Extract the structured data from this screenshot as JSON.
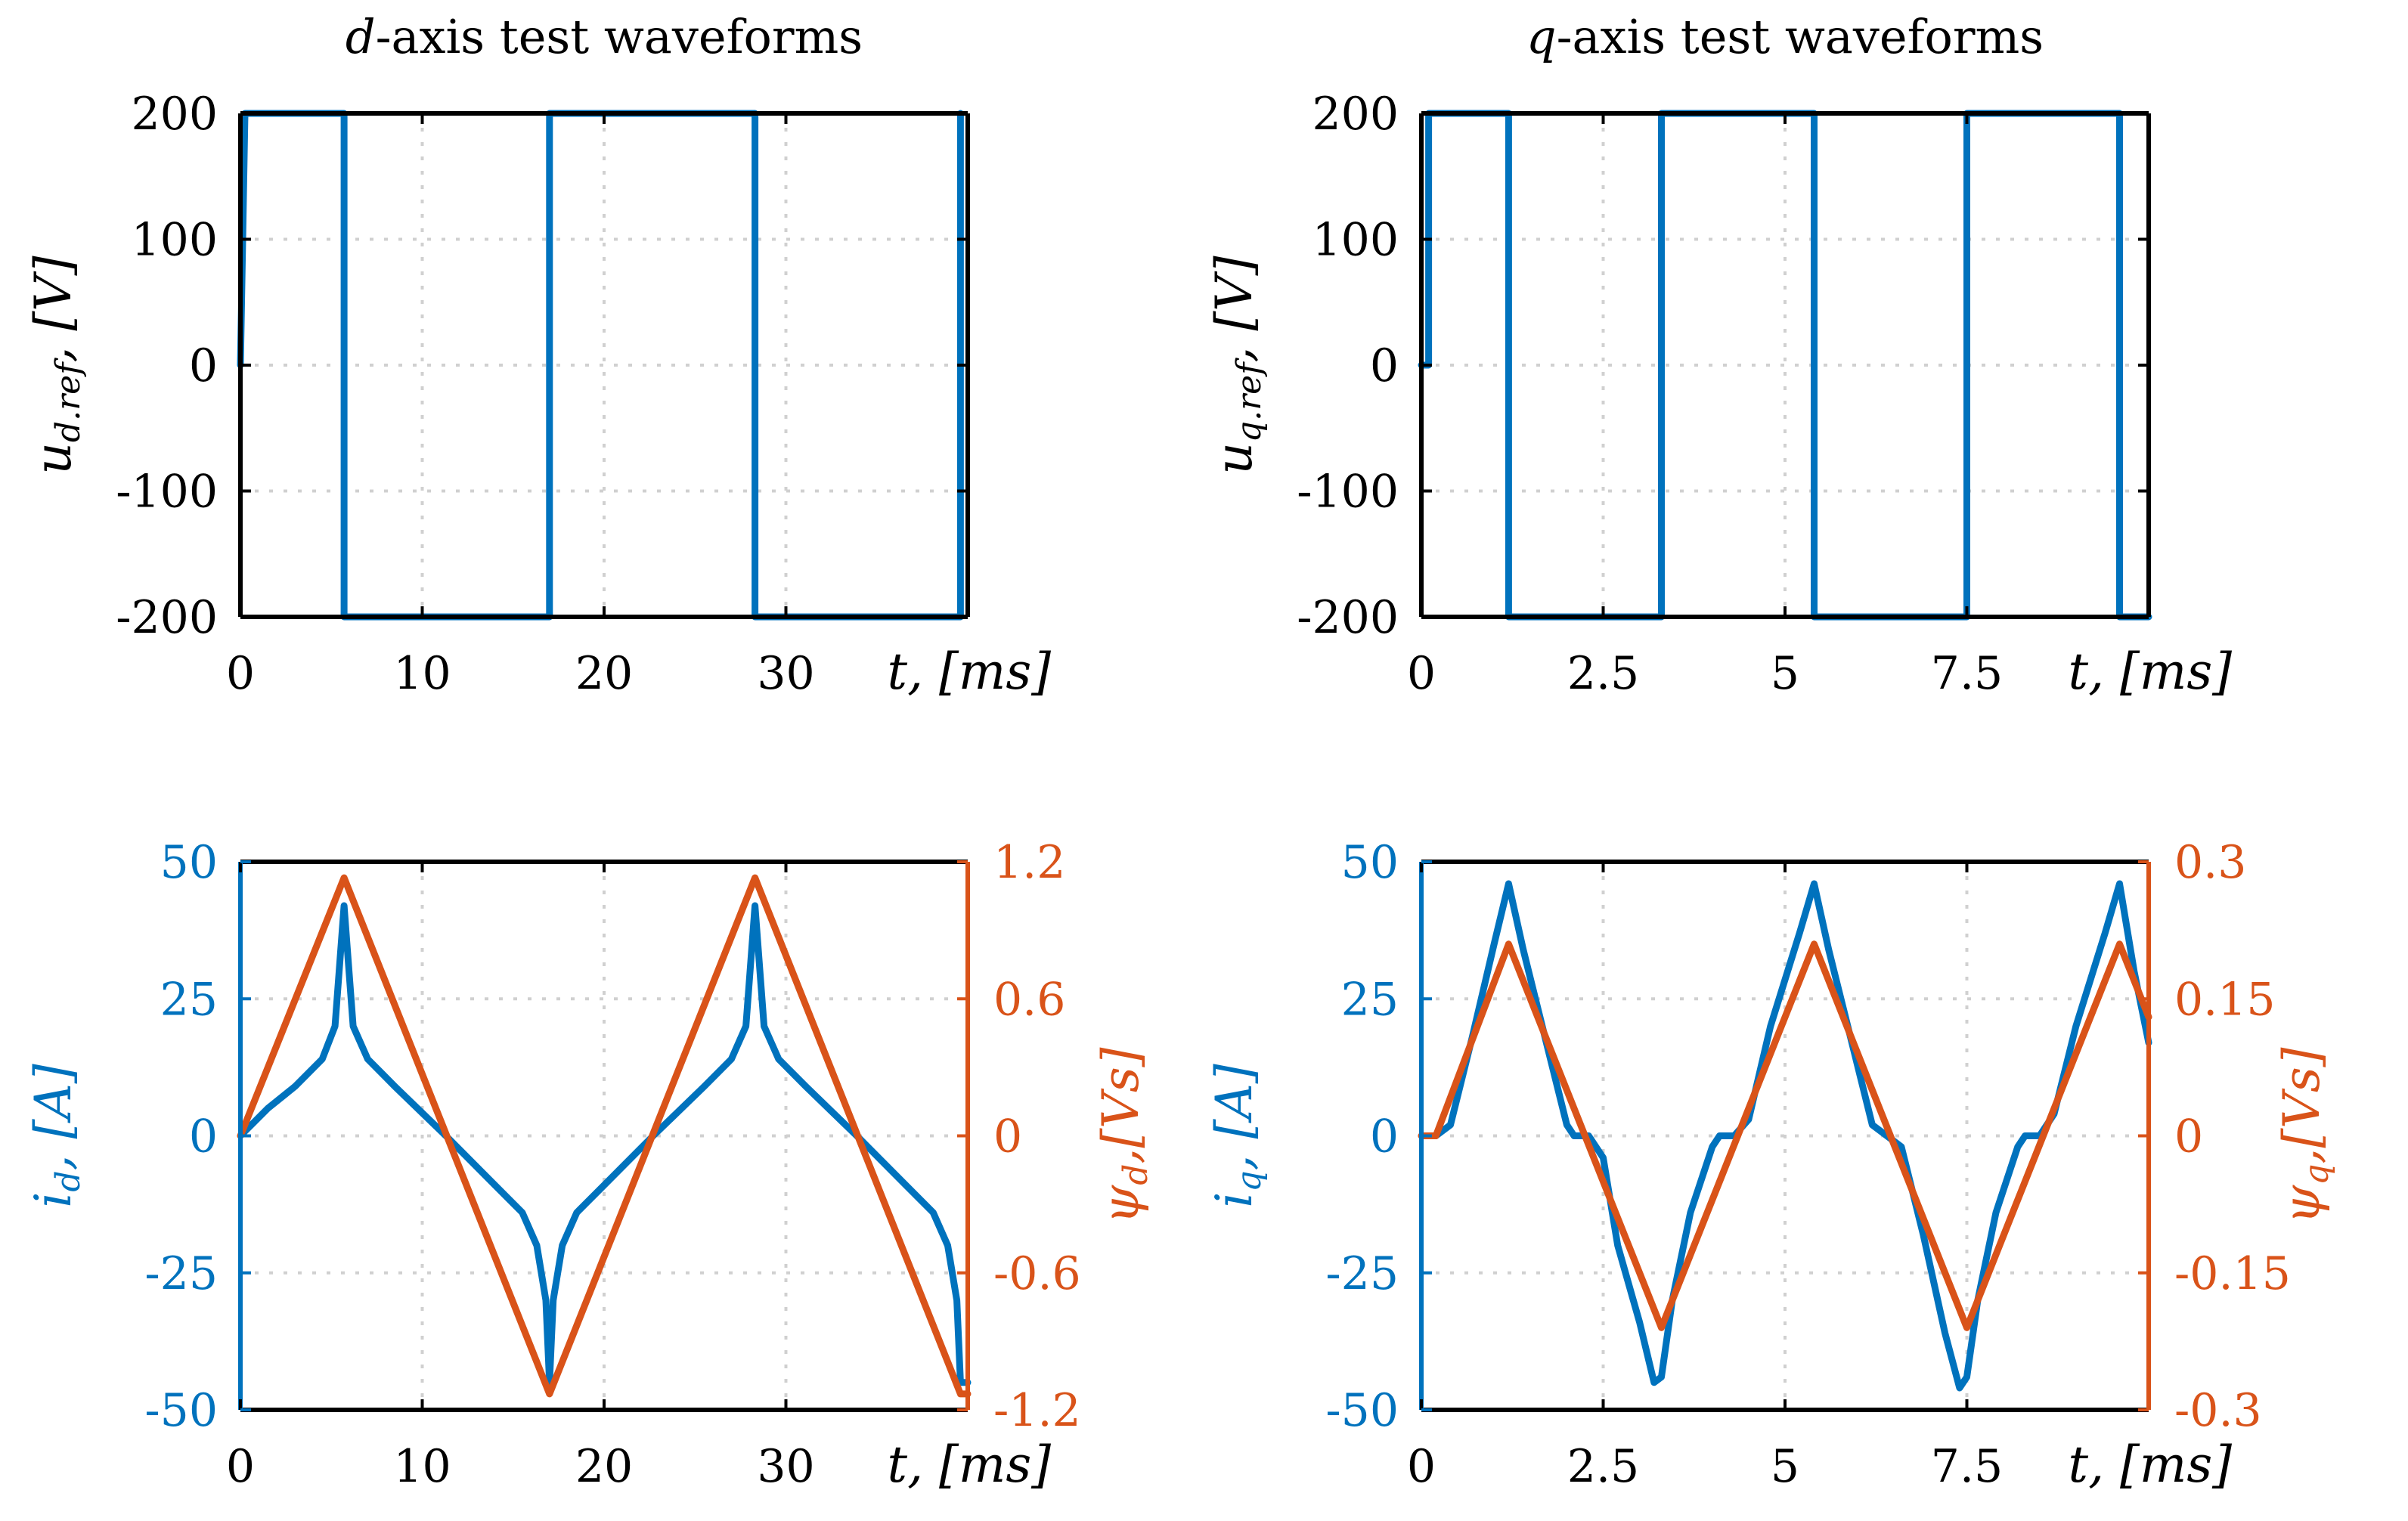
{
  "colors": {
    "blue": "#0072BD",
    "orange": "#D95319",
    "black": "#000000",
    "grid": "#d0d0d0"
  },
  "chart_data": [
    {
      "id": "d-voltage",
      "type": "line",
      "title": {
        "prefix": "d",
        "rest": "-axis test waveforms"
      },
      "xlabel": {
        "var": "t",
        "unit": ", [ms]"
      },
      "ylabel": "u_{d.ref}, [V]",
      "ylabel_parts": {
        "var": "u",
        "sub": "d.ref",
        "unit": ", [V]"
      },
      "xlim": [
        0,
        40
      ],
      "ylim": [
        -200,
        200
      ],
      "xticks": [
        0,
        10,
        20,
        30
      ],
      "xtick_labels": [
        "0",
        "10",
        "20",
        "30"
      ],
      "yticks": [
        200,
        100,
        0,
        -100,
        -200
      ],
      "ytick_labels": [
        "200",
        "100",
        "0",
        "-100",
        "-200"
      ],
      "series": [
        {
          "name": "u_d,ref",
          "color": "#0072BD",
          "axis": "left",
          "x": [
            0,
            0.25,
            5.7,
            5.7,
            17.0,
            17.0,
            28.3,
            28.3,
            39.6,
            39.6
          ],
          "y": [
            0,
            200,
            200,
            -200,
            -200,
            200,
            200,
            -200,
            -200,
            200
          ]
        }
      ]
    },
    {
      "id": "q-voltage",
      "type": "line",
      "title": {
        "prefix": "q",
        "rest": "-axis test waveforms"
      },
      "xlabel": {
        "var": "t",
        "unit": ", [ms]"
      },
      "ylabel": "u_{q.ref}, [V]",
      "ylabel_parts": {
        "var": "u",
        "sub": "q.ref",
        "unit": ", [V]"
      },
      "xlim": [
        0,
        10
      ],
      "ylim": [
        -200,
        200
      ],
      "xticks": [
        0,
        2.5,
        5,
        7.5
      ],
      "xtick_labels": [
        "0",
        "2.5",
        "5",
        "7.5"
      ],
      "yticks": [
        200,
        100,
        0,
        -100,
        -200
      ],
      "ytick_labels": [
        "200",
        "100",
        "0",
        "-100",
        "-200"
      ],
      "series": [
        {
          "name": "u_q,ref",
          "color": "#0072BD",
          "axis": "left",
          "x": [
            0,
            0.1,
            0.1,
            1.2,
            1.2,
            3.3,
            3.3,
            5.4,
            5.4,
            7.5,
            7.5,
            9.6,
            9.6,
            10
          ],
          "y": [
            0,
            0,
            200,
            200,
            -200,
            -200,
            200,
            200,
            -200,
            -200,
            200,
            200,
            -200,
            -200
          ]
        }
      ]
    },
    {
      "id": "d-current-flux",
      "type": "line",
      "xlabel": {
        "var": "t",
        "unit": ", [ms]"
      },
      "ylabel": "i_d, [A]",
      "ylabel_parts": {
        "var": "i",
        "sub": "d",
        "unit": ", [A]"
      },
      "ylabel_right": "psi_d, [Vs]",
      "ylabel_right_parts": {
        "var": "ψ",
        "sub": "d",
        "unit": ",[Vs]"
      },
      "xlim": [
        0,
        40
      ],
      "ylim": [
        -50,
        50
      ],
      "ylim_right": [
        -1.2,
        1.2
      ],
      "xticks": [
        0,
        10,
        20,
        30
      ],
      "xtick_labels": [
        "0",
        "10",
        "20",
        "30"
      ],
      "yticks": [
        50,
        25,
        0,
        -25,
        -50
      ],
      "ytick_labels": [
        "50",
        "25",
        "0",
        "-25",
        "-50"
      ],
      "yticks_right": [
        1.2,
        0.6,
        0,
        -0.6,
        -1.2
      ],
      "ytick_labels_right": [
        "1.2",
        "0.6",
        "0",
        "-0.6",
        "-1.2"
      ],
      "series": [
        {
          "name": "i_d",
          "color": "#0072BD",
          "axis": "left",
          "x": [
            0,
            1.5,
            3.0,
            4.5,
            5.2,
            5.7,
            6.2,
            7.0,
            8.5,
            11.3,
            14.0,
            15.5,
            16.3,
            16.8,
            17.0,
            17.2,
            17.7,
            18.5,
            20.0,
            22.7,
            25.5,
            27.0,
            27.8,
            28.3,
            28.8,
            29.6,
            31.1,
            33.9,
            36.6,
            38.1,
            38.9,
            39.4,
            39.6,
            40
          ],
          "y": [
            0,
            5,
            9,
            14,
            20,
            42,
            20,
            14,
            9,
            0,
            -9,
            -14,
            -20,
            -30,
            -45,
            -30,
            -20,
            -14,
            -9,
            0,
            9,
            14,
            20,
            42,
            20,
            14,
            9,
            0,
            -9,
            -14,
            -20,
            -30,
            -45,
            -45
          ]
        },
        {
          "name": "psi_d",
          "color": "#D95319",
          "axis": "right",
          "x": [
            0,
            5.7,
            17.0,
            28.3,
            39.6,
            40
          ],
          "y": [
            0,
            1.13,
            -1.13,
            1.13,
            -1.13,
            -1.13
          ]
        }
      ]
    },
    {
      "id": "q-current-flux",
      "type": "line",
      "xlabel": {
        "var": "t",
        "unit": ", [ms]"
      },
      "ylabel": "i_q, [A]",
      "ylabel_parts": {
        "var": "i",
        "sub": "q",
        "unit": ", [A]"
      },
      "ylabel_right": "psi_q, [Vs]",
      "ylabel_right_parts": {
        "var": "ψ",
        "sub": "q",
        "unit": ",[Vs]"
      },
      "xlim": [
        0,
        10
      ],
      "ylim": [
        -50,
        50
      ],
      "ylim_right": [
        -0.3,
        0.3
      ],
      "xticks": [
        0,
        2.5,
        5,
        7.5
      ],
      "xtick_labels": [
        "0",
        "2.5",
        "5",
        "7.5"
      ],
      "yticks": [
        50,
        25,
        0,
        -25,
        -50
      ],
      "ytick_labels": [
        "50",
        "25",
        "0",
        "-25",
        "-50"
      ],
      "yticks_right": [
        0.3,
        0.15,
        0,
        -0.15,
        -0.3
      ],
      "ytick_labels_right": [
        "0.3",
        "0.15",
        "0",
        "-0.15",
        "-0.3"
      ],
      "series": [
        {
          "name": "i_q",
          "color": "#0072BD",
          "axis": "left",
          "x": [
            0,
            0.2,
            0.4,
            0.7,
            1.0,
            1.2,
            1.4,
            1.7,
            2.0,
            2.1,
            2.3,
            2.5,
            2.7,
            3.0,
            3.2,
            3.3,
            3.45,
            3.7,
            4.0,
            4.1,
            4.3,
            4.5,
            4.8,
            5.2,
            5.4,
            5.6,
            5.9,
            6.2,
            6.4,
            6.6,
            6.9,
            7.2,
            7.4,
            7.5,
            7.65,
            7.9,
            8.2,
            8.3,
            8.5,
            8.7,
            9.0,
            9.4,
            9.6,
            9.8,
            10.0
          ],
          "y": [
            0,
            0,
            2,
            18,
            35,
            46,
            34,
            18,
            2,
            0,
            0,
            -4,
            -20,
            -34,
            -45,
            -44,
            -30,
            -14,
            -2,
            0,
            0,
            3,
            20,
            37,
            46,
            34,
            18,
            2,
            0,
            -2,
            -18,
            -36,
            -46,
            -44,
            -30,
            -14,
            -2,
            0,
            0,
            4,
            20,
            37,
            46,
            30,
            17
          ]
        },
        {
          "name": "psi_q",
          "color": "#D95319",
          "axis": "right",
          "x": [
            0,
            0.2,
            1.2,
            3.3,
            5.4,
            7.5,
            9.6,
            10.0
          ],
          "y": [
            0,
            0,
            0.21,
            -0.21,
            0.21,
            -0.21,
            0.21,
            0.13
          ]
        }
      ]
    }
  ]
}
